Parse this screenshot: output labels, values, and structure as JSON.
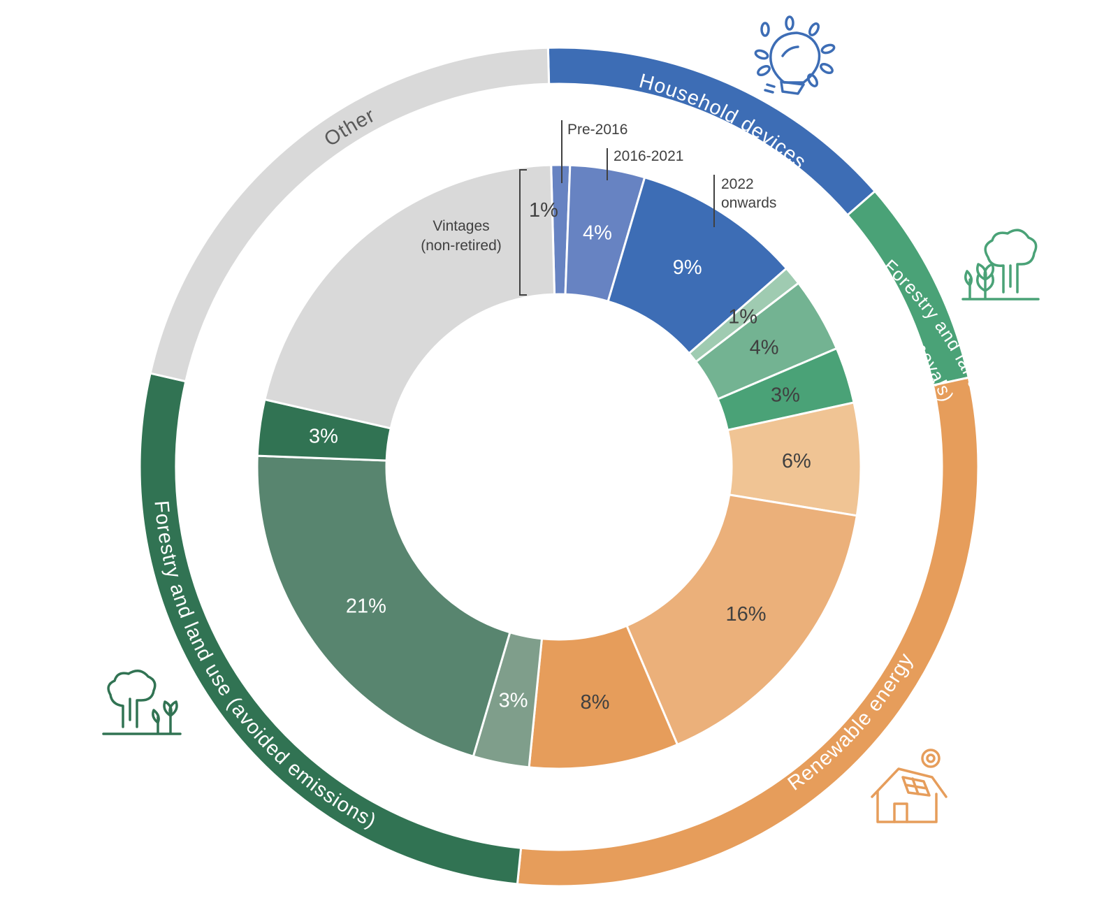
{
  "chart_data": {
    "type": "pie",
    "subtype": "nested-donut",
    "inner_ring": [
      {
        "group": "Household devices",
        "value": 1,
        "label": "",
        "color": "#6783c2",
        "text_color": "#ffffff"
      },
      {
        "group": "Household devices",
        "value": 4,
        "label": "4%",
        "color": "#6783c2",
        "text_color": "#ffffff"
      },
      {
        "group": "Household devices",
        "value": 9,
        "label": "9%",
        "color": "#3d6db5",
        "text_color": "#ffffff"
      },
      {
        "group": "Forestry and land use (Removals)",
        "value": 1,
        "label": "1%",
        "color": "#9fcbb1",
        "text_color": "#404040"
      },
      {
        "group": "Forestry and land use (Removals)",
        "value": 4,
        "label": "4%",
        "color": "#73b392",
        "text_color": "#404040"
      },
      {
        "group": "Forestry and land use (Removals)",
        "value": 3,
        "label": "3%",
        "color": "#4aa277",
        "text_color": "#404040"
      },
      {
        "group": "Renewable energy",
        "value": 6,
        "label": "6%",
        "color": "#f0c494",
        "text_color": "#404040"
      },
      {
        "group": "Renewable energy",
        "value": 16,
        "label": "16%",
        "color": "#ebb07a",
        "text_color": "#404040"
      },
      {
        "group": "Renewable energy",
        "value": 8,
        "label": "8%",
        "color": "#e69d5b",
        "text_color": "#404040"
      },
      {
        "group": "Forestry and land use (avoided emissions)",
        "value": 3,
        "label": "3%",
        "color": "#7f9e8b",
        "text_color": "#ffffff"
      },
      {
        "group": "Forestry and land use (avoided emissions)",
        "value": 21,
        "label": "21%",
        "color": "#58856f",
        "text_color": "#ffffff"
      },
      {
        "group": "Forestry and land use (avoided emissions)",
        "value": 3,
        "label": "3%",
        "color": "#317353",
        "text_color": "#ffffff"
      },
      {
        "group": "Other",
        "value": 21,
        "label": "",
        "color": "#d9d9d9",
        "text_color": "#404040"
      }
    ],
    "outer_ring": [
      {
        "name": "Household devices",
        "value": 14,
        "color": "#3d6db5",
        "text_color": "#ffffff"
      },
      {
        "name": "Forestry and land use (Removals)",
        "value": 8,
        "color": "#4aa277",
        "text_color": "#ffffff"
      },
      {
        "name": "Renewable energy",
        "value": 30,
        "color": "#e69d5b",
        "text_color": "#ffffff"
      },
      {
        "name": "Forestry and land use (avoided emissions)",
        "value": 27,
        "color": "#317353",
        "text_color": "#ffffff"
      },
      {
        "name": "Other",
        "value": 21,
        "color": "#d9d9d9",
        "text_color": "#595959"
      }
    ],
    "outer_labels": {
      "household": "Household devices",
      "removals_line1": "Forestry and land",
      "removals_line2": "use (Removals)",
      "renewable": "Renewable energy",
      "avoided": "Forestry and land use (avoided emissions)",
      "other": "Other"
    },
    "annotations": {
      "pre_2016": "Pre-2016",
      "y2016_2021": "2016-2021",
      "y2022_line1": "2022",
      "y2022_line2": "onwards",
      "vintages_line1": "Vintages",
      "vintages_line2": "(non-retired)",
      "vintages_pct": "1%"
    },
    "icons": [
      "lightbulb-icon",
      "trees-removals-icon",
      "trees-avoided-icon",
      "solar-house-icon"
    ],
    "colors": {
      "household_icon": "#3d6db5",
      "removals_icon": "#4aa277",
      "avoided_icon": "#317353",
      "renewable_icon": "#e69d5b",
      "annotation_line": "#404040"
    }
  }
}
